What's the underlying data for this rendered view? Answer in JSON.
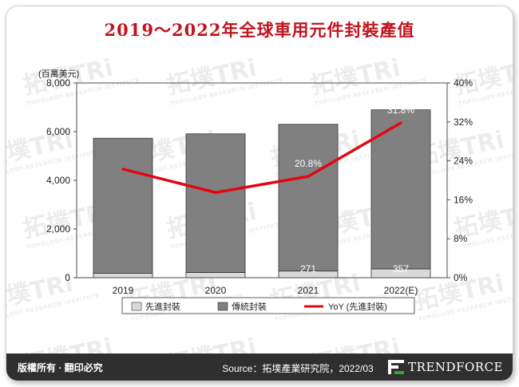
{
  "title": "2019～2022年全球車用元件封裝產值",
  "chart_data": {
    "type": "bar",
    "stacked": true,
    "categories": [
      "2019",
      "2020",
      "2021",
      "2022(E)"
    ],
    "ylabel": "(百萬美元)",
    "ylim": [
      0,
      8000
    ],
    "yticks": [
      "0",
      "2,000",
      "4,000",
      "6,000",
      "8,000"
    ],
    "y2lim": [
      0,
      40
    ],
    "y2ticks": [
      "0%",
      "8%",
      "16%",
      "24%",
      "32%",
      "40%"
    ],
    "grid": false,
    "legend_position": "bottom",
    "series": [
      {
        "name": "先進封裝",
        "kind": "bar",
        "color": "#d9d9d9",
        "values": [
          180,
          210,
          271,
          357
        ],
        "labels": [
          "",
          "",
          "271",
          "357"
        ]
      },
      {
        "name": "傳統封裝",
        "kind": "bar",
        "color": "#808080",
        "values": [
          5550,
          5700,
          6030,
          6540
        ]
      },
      {
        "name": "YoY (先進封裝)",
        "kind": "line",
        "axis": "right",
        "color": "#e30613",
        "values": [
          22.3,
          17.5,
          20.8,
          31.8
        ],
        "labels": [
          "",
          "",
          "20.8%",
          "31.8%"
        ]
      }
    ]
  },
  "footer": {
    "copyright": "版權所有 · 翻印必究",
    "source": "Source：拓墣產業研究院，2022/03",
    "brand": "TRENDFORCE"
  },
  "watermark": {
    "text": "拓墣TRi",
    "sub": "TOPOLOGY RESEARCH INSTITUTE"
  }
}
